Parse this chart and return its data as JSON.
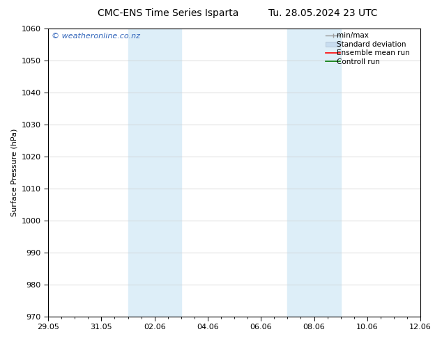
{
  "title_left": "CMC-ENS Time Series Isparta",
  "title_right": "Tu. 28.05.2024 23 UTC",
  "ylabel": "Surface Pressure (hPa)",
  "ylim": [
    970,
    1060
  ],
  "yticks": [
    970,
    980,
    990,
    1000,
    1010,
    1020,
    1030,
    1040,
    1050,
    1060
  ],
  "xtick_labels": [
    "29.05",
    "31.05",
    "02.06",
    "04.06",
    "06.06",
    "08.06",
    "10.06",
    "12.06"
  ],
  "xtick_positions": [
    0,
    2,
    4,
    6,
    8,
    10,
    12,
    14
  ],
  "xlim": [
    0,
    14
  ],
  "watermark": "© weatheronline.co.nz",
  "watermark_color": "#3366bb",
  "shaded_bands": [
    {
      "x_start": 3.0,
      "x_end": 5.0
    },
    {
      "x_start": 9.0,
      "x_end": 11.0
    }
  ],
  "shaded_color": "#ddeef8",
  "background_color": "#ffffff",
  "legend_labels": [
    "min/max",
    "Standard deviation",
    "Ensemble mean run",
    "Controll run"
  ],
  "legend_colors": [
    "#999999",
    "#c8ddf0",
    "#ff0000",
    "#007700"
  ],
  "grid_color": "#cccccc",
  "spine_color": "#000000",
  "font_size": 8,
  "title_font_size": 10,
  "ylabel_fontsize": 8
}
